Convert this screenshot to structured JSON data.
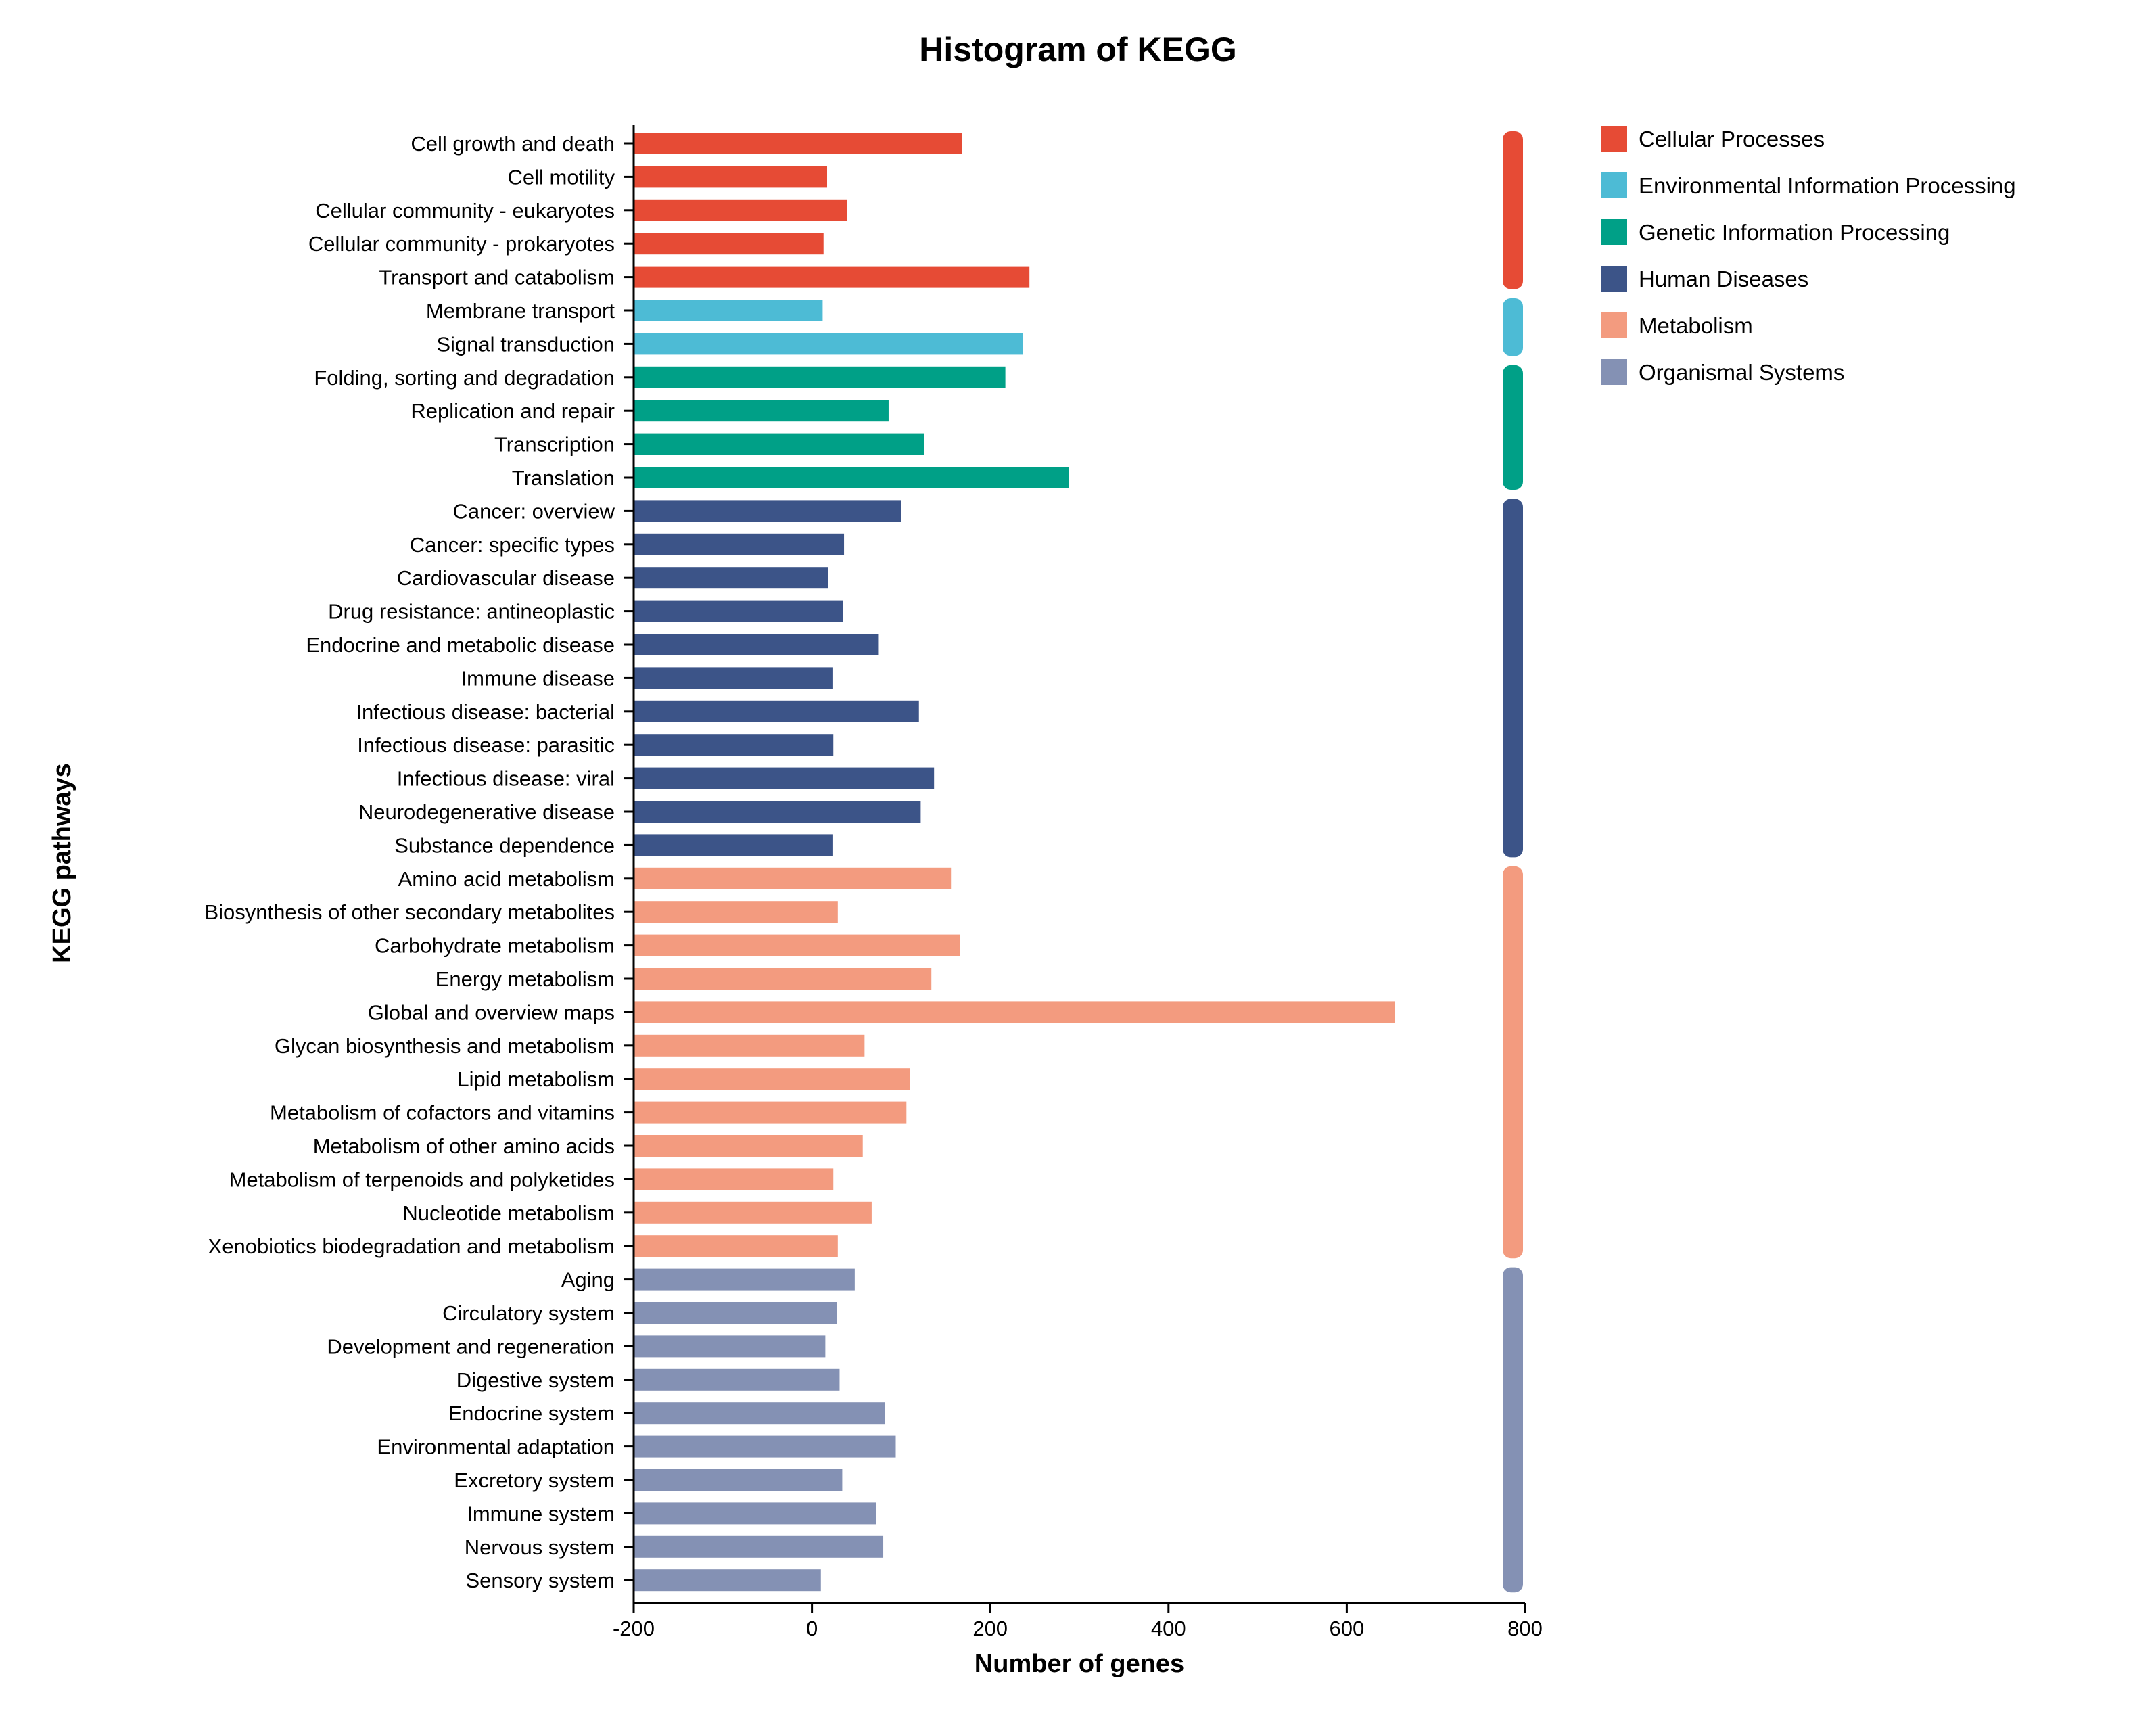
{
  "chart_data": {
    "type": "bar",
    "orientation": "horizontal",
    "title": "Histogram of KEGG",
    "xlabel": "Number of genes",
    "ylabel": "KEGG pathways",
    "xlim": [
      -200,
      800
    ],
    "xticks": [
      -200,
      0,
      200,
      400,
      600,
      800
    ],
    "grid": false,
    "legend_position": "top-right",
    "groups": [
      {
        "name": "Cellular Processes",
        "color": "#E64B35"
      },
      {
        "name": "Environmental Information Processing",
        "color": "#4DBBD5"
      },
      {
        "name": "Genetic Information Processing",
        "color": "#00A087"
      },
      {
        "name": "Human Diseases",
        "color": "#3C5488"
      },
      {
        "name": "Metabolism",
        "color": "#F39B7F"
      },
      {
        "name": "Organismal Systems",
        "color": "#8491B4"
      }
    ],
    "categories": [
      "Cell growth and death",
      "Cell motility",
      "Cellular community - eukaryotes",
      "Cellular community - prokaryotes",
      "Transport and catabolism",
      "Membrane transport",
      "Signal transduction",
      "Folding, sorting and degradation",
      "Replication and repair",
      "Transcription",
      "Translation",
      "Cancer: overview",
      "Cancer: specific types",
      "Cardiovascular disease",
      "Drug resistance: antineoplastic",
      "Endocrine and metabolic disease",
      "Immune disease",
      "Infectious disease: bacterial",
      "Infectious disease: parasitic",
      "Infectious disease: viral",
      "Neurodegenerative disease",
      "Substance dependence",
      "Amino acid metabolism",
      "Biosynthesis of other secondary metabolites",
      "Carbohydrate metabolism",
      "Energy metabolism",
      "Global and overview maps",
      "Glycan biosynthesis and metabolism",
      "Lipid metabolism",
      "Metabolism of cofactors and vitamins",
      "Metabolism of other amino acids",
      "Metabolism of terpenoids and polyketides",
      "Nucleotide metabolism",
      "Xenobiotics biodegradation and metabolism",
      "Aging",
      "Circulatory system",
      "Development and regeneration",
      "Digestive system",
      "Endocrine system",
      "Environmental adaptation",
      "Excretory system",
      "Immune system",
      "Nervous system",
      "Sensory system"
    ],
    "values": [
      168,
      17,
      39,
      13,
      244,
      12,
      237,
      217,
      86,
      126,
      288,
      100,
      36,
      18,
      35,
      75,
      23,
      120,
      24,
      137,
      122,
      23,
      156,
      29,
      166,
      134,
      654,
      59,
      110,
      106,
      57,
      24,
      67,
      29,
      48,
      28,
      15,
      31,
      82,
      94,
      34,
      72,
      80,
      10
    ],
    "group_index": [
      0,
      0,
      0,
      0,
      0,
      1,
      1,
      2,
      2,
      2,
      2,
      3,
      3,
      3,
      3,
      3,
      3,
      3,
      3,
      3,
      3,
      3,
      4,
      4,
      4,
      4,
      4,
      4,
      4,
      4,
      4,
      4,
      4,
      4,
      5,
      5,
      5,
      5,
      5,
      5,
      5,
      5,
      5,
      5
    ]
  }
}
